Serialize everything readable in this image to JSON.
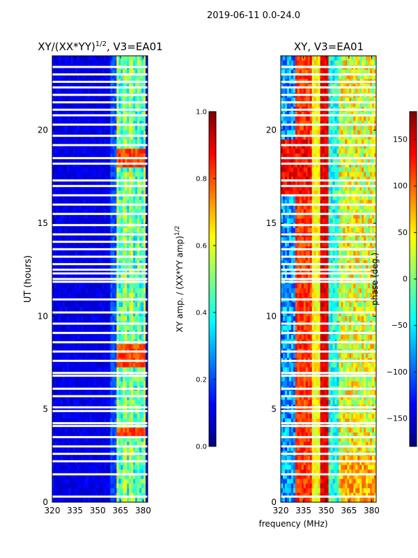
{
  "suptitle": "2019-06-11 0.0-24.0",
  "chart_data": [
    {
      "type": "heatmap",
      "title": "XY/(XX*YY)",
      "title_superscript": "1/2",
      "title_suffix": ", V3=EA01",
      "xlabel": "",
      "ylabel": "UT (hours)",
      "xlim": [
        320,
        383
      ],
      "ylim": [
        0,
        24
      ],
      "x_ticks": [
        "320",
        "335",
        "350",
        "365",
        "380"
      ],
      "x_tick_values": [
        320,
        335,
        350,
        365,
        380
      ],
      "y_ticks": [
        "0",
        "5",
        "10",
        "15",
        "20"
      ],
      "y_tick_values": [
        0,
        5,
        10,
        15,
        20
      ],
      "colorbar": {
        "label": "XY amp. / (XX*YY amp)",
        "label_superscript": "1/2",
        "range": [
          0.0,
          1.0
        ],
        "ticks": [
          "0.0",
          "0.2",
          "0.4",
          "0.6",
          "0.8",
          "1.0"
        ],
        "tick_values": [
          0.0,
          0.2,
          0.4,
          0.6,
          0.8,
          1.0
        ]
      }
    },
    {
      "type": "heatmap",
      "title": "XY, V3=EA01",
      "xlabel": "frequency (MHz)",
      "ylabel": "",
      "xlim": [
        320,
        383
      ],
      "ylim": [
        0,
        24
      ],
      "x_ticks": [
        "320",
        "335",
        "350",
        "365",
        "380"
      ],
      "x_tick_values": [
        320,
        335,
        350,
        365,
        380
      ],
      "y_ticks": [
        "0",
        "5",
        "10",
        "15",
        "20"
      ],
      "y_tick_values": [
        0,
        5,
        10,
        15,
        20
      ],
      "colorbar": {
        "label": "phase (deg.)",
        "range": [
          -180,
          180
        ],
        "ticks": [
          "−150",
          "−100",
          "−50",
          "0",
          "50",
          "100",
          "150"
        ],
        "tick_values": [
          -150,
          -100,
          -50,
          0,
          50,
          100,
          150
        ]
      }
    }
  ],
  "flagged_gaps_ut_hours": [
    0.3,
    1.5,
    2.2,
    2.6,
    3.0,
    3.5,
    4.1,
    4.25,
    4.9,
    5.1,
    5.7,
    6.1,
    6.8,
    6.95,
    7.6,
    8.1,
    8.6,
    9.1,
    9.6,
    10.2,
    10.9,
    11.85,
    12.0,
    12.3,
    12.5,
    12.8,
    13.2,
    13.6,
    14.0,
    14.4,
    14.9,
    15.5,
    16.0,
    16.5,
    17.0,
    17.3,
    18.2,
    18.5,
    19.2,
    19.7,
    20.3,
    20.8,
    21.1,
    21.5,
    21.9,
    22.3,
    22.6,
    23.0,
    23.4
  ],
  "colors": {
    "jet_stops": [
      "#00007f",
      "#0000ff",
      "#007fff",
      "#00ffff",
      "#7fff7f",
      "#ffff00",
      "#ff7f00",
      "#ff0000",
      "#7f0000"
    ],
    "background": "#ffffff",
    "gap": "#ffffff"
  }
}
